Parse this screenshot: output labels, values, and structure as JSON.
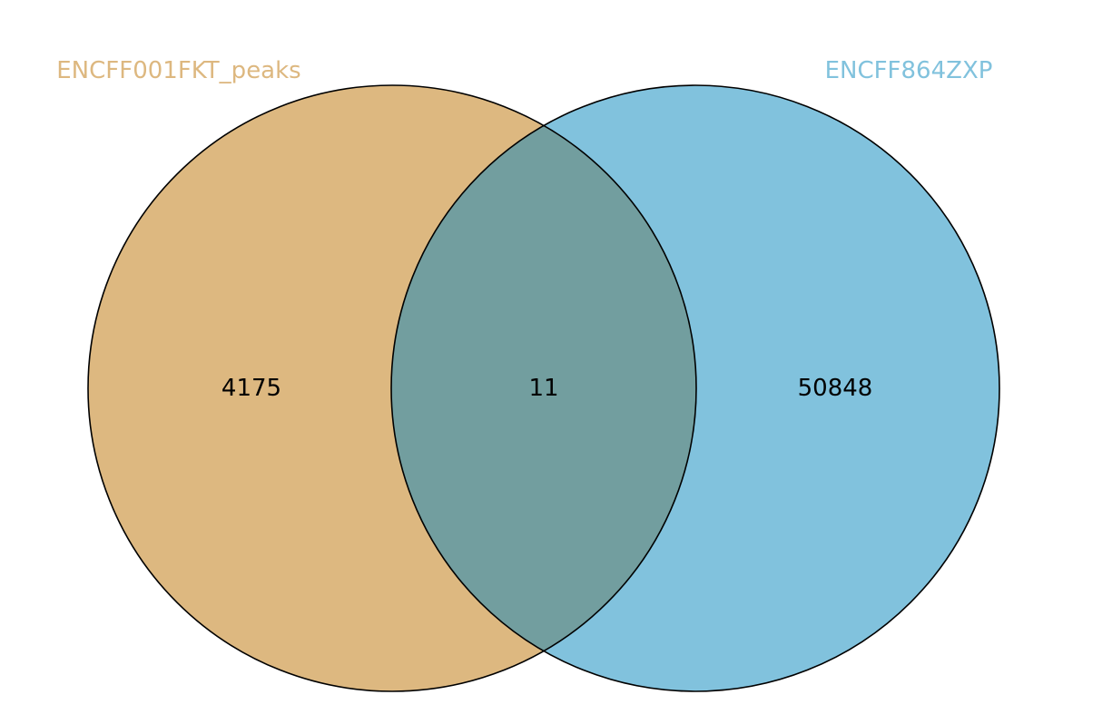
{
  "venn": {
    "sets": [
      {
        "name": "ENCFF001FKT_peaks",
        "color": "#DDB880",
        "label_color": "#DDB880"
      },
      {
        "name": "ENCFF864ZXP",
        "color": "#81C2DD",
        "label_color": "#81C2DD"
      }
    ],
    "overlap_color": "#729E9F",
    "counts": {
      "left_only": "4175",
      "both": "11",
      "right_only": "50848"
    }
  }
}
